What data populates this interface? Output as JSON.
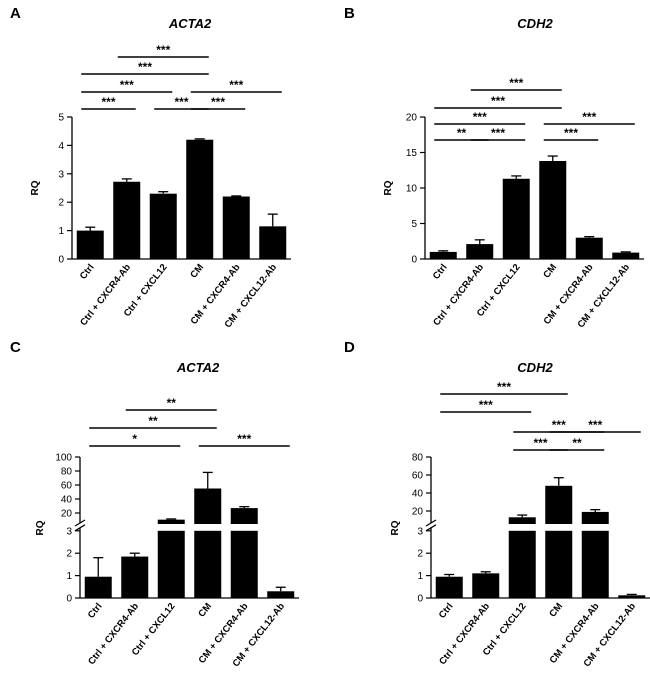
{
  "chart_data": [
    {
      "panel": "A",
      "type": "bar",
      "title": "ACTA2",
      "ylabel": "RQ",
      "ylim": [
        0,
        5
      ],
      "yticks": [
        "0",
        "1",
        "2",
        "3",
        "4",
        "5"
      ],
      "categories": [
        "Ctrl",
        "Ctrl + CXCR4-Ab",
        "Ctrl + CXCL12",
        "CM",
        "CM + CXCR4-Ab",
        "CM + CXCL12-Ab"
      ],
      "values": [
        1.0,
        2.72,
        2.3,
        4.2,
        2.2,
        1.15
      ],
      "errors": [
        0.12,
        0.1,
        0.07,
        0.03,
        0.02,
        0.43
      ],
      "significance": [
        {
          "from": 0,
          "to": 1,
          "label": "***"
        },
        {
          "from": 2,
          "to": 3,
          "label": "***"
        },
        {
          "from": 3,
          "to": 4,
          "label": "***"
        },
        {
          "from": 0,
          "to": 2,
          "label": "***"
        },
        {
          "from": 3,
          "to": 5,
          "label": "***"
        },
        {
          "from": 0,
          "to": 3,
          "label": "***"
        },
        {
          "from": 1,
          "to": 3,
          "label": "***"
        }
      ]
    },
    {
      "panel": "B",
      "type": "bar",
      "title": "CDH2",
      "ylabel": "RQ",
      "ylim": [
        0,
        20
      ],
      "yticks": [
        "0",
        "5",
        "10",
        "15",
        "20"
      ],
      "categories": [
        "Ctrl",
        "Ctrl + CXCR4-Ab",
        "Ctrl + CXCL12",
        "CM",
        "CM + CXCR4-Ab",
        "CM + CXCL12-Ab"
      ],
      "values": [
        1.0,
        2.1,
        11.3,
        13.8,
        3.0,
        0.9
      ],
      "errors": [
        0.15,
        0.6,
        0.4,
        0.7,
        0.15,
        0.1
      ],
      "significance": [
        {
          "from": 0,
          "to": 1,
          "label": "**"
        },
        {
          "from": 1,
          "to": 2,
          "label": "***"
        },
        {
          "from": 3,
          "to": 4,
          "label": "***"
        },
        {
          "from": 0,
          "to": 2,
          "label": "***"
        },
        {
          "from": 3,
          "to": 5,
          "label": "***"
        },
        {
          "from": 0,
          "to": 3,
          "label": "***"
        },
        {
          "from": 1,
          "to": 3,
          "label": "***"
        }
      ]
    },
    {
      "panel": "C",
      "type": "bar",
      "title": "ACTA2",
      "ylabel": "RQ",
      "axis_break": {
        "lower": [
          0,
          3
        ],
        "upper": [
          10,
          100
        ]
      },
      "yticks_lower": [
        "0",
        "1",
        "2",
        "3"
      ],
      "yticks_upper": [
        "20",
        "40",
        "60",
        "80",
        "100"
      ],
      "categories": [
        "Ctrl",
        "Ctrl + CXCR4-Ab",
        "Ctrl + CXCL12",
        "CM",
        "CM + CXCR4-Ab",
        "CM + CXCL12-Ab"
      ],
      "values": [
        0.95,
        1.85,
        10.5,
        55,
        27,
        0.3
      ],
      "errors": [
        0.85,
        0.15,
        1,
        23,
        2,
        0.18
      ],
      "significance": [
        {
          "from": 0,
          "to": 2,
          "label": "*"
        },
        {
          "from": 3,
          "to": 5,
          "label": "***"
        },
        {
          "from": 0,
          "to": 3,
          "label": "**"
        },
        {
          "from": 1,
          "to": 3,
          "label": "**"
        }
      ]
    },
    {
      "panel": "D",
      "type": "bar",
      "title": "CDH2",
      "ylabel": "RQ",
      "axis_break": {
        "lower": [
          0,
          3
        ],
        "upper": [
          10,
          80
        ]
      },
      "yticks_lower": [
        "0",
        "1",
        "2",
        "3"
      ],
      "yticks_upper": [
        "20",
        "40",
        "60",
        "80"
      ],
      "categories": [
        "Ctrl",
        "Ctrl + CXCR4-Ab",
        "Ctrl + CXCL12",
        "CM",
        "CM + CXCR4-Ab",
        "CM + CXCL12-Ab"
      ],
      "values": [
        0.95,
        1.1,
        13,
        48,
        19,
        0.12
      ],
      "errors": [
        0.1,
        0.07,
        2.5,
        9,
        2.5,
        0.04
      ],
      "significance": [
        {
          "from": 2,
          "to": 3,
          "label": "***"
        },
        {
          "from": 3,
          "to": 4,
          "label": "**"
        },
        {
          "from": 2,
          "to": 4,
          "label": "***"
        },
        {
          "from": 3,
          "to": 5,
          "label": "***"
        },
        {
          "from": 0,
          "to": 2,
          "label": "***"
        },
        {
          "from": 0,
          "to": 3,
          "label": "***"
        }
      ]
    }
  ]
}
